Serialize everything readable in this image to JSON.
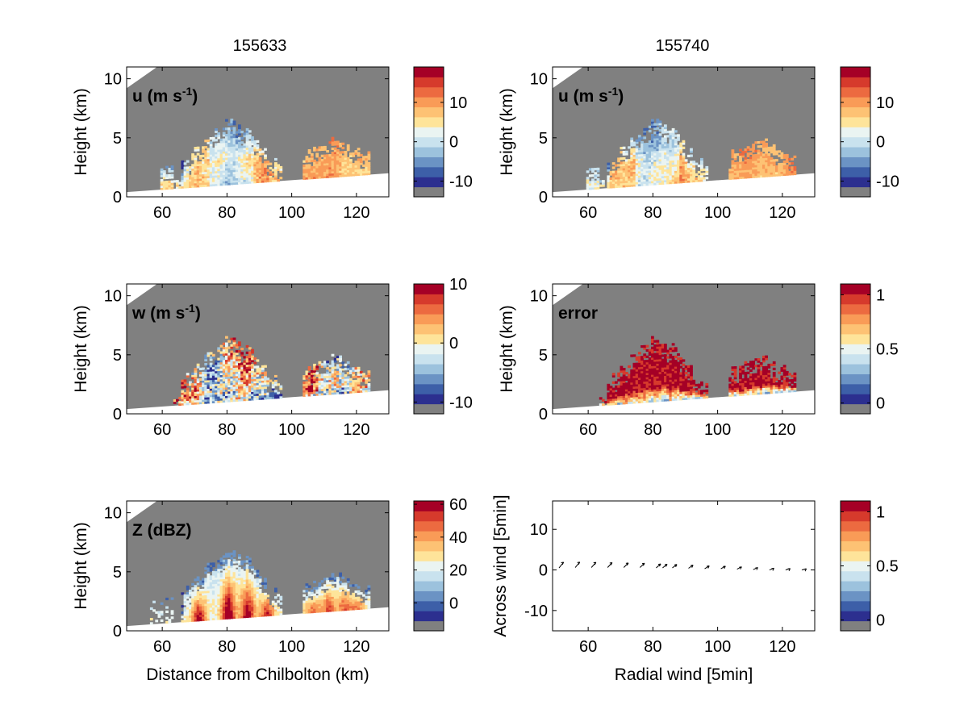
{
  "columns": [
    "155633",
    "155740"
  ],
  "colors": {
    "ground": "#808080",
    "scale": [
      "#808080",
      "#2c2f8f",
      "#3d5fa8",
      "#6b93c4",
      "#9cc2dd",
      "#c9e2ee",
      "#eaf4f2",
      "#fee49a",
      "#fdc274",
      "#f99b57",
      "#ec6a40",
      "#d63a2c",
      "#a50026"
    ]
  },
  "panels": [
    {
      "id": "u-left",
      "col": 0,
      "row": 0,
      "label": "u (m s",
      "label_sup": "-1",
      "label_close": ")",
      "ylabel": "Height (km)",
      "xlabel": "",
      "xlim": [
        49,
        130
      ],
      "ylim": [
        0,
        11
      ],
      "xticks": [
        "60",
        "80",
        "100",
        "120"
      ],
      "yticks": [
        "0",
        "5",
        "10"
      ],
      "colorbar": {
        "ticks": [
          "10",
          "0",
          "-10"
        ],
        "min": -14,
        "max": 19
      },
      "field": "u"
    },
    {
      "id": "u-right",
      "col": 1,
      "row": 0,
      "label": "u (m s",
      "label_sup": "-1",
      "label_close": ")",
      "ylabel": "Height (km)",
      "xlabel": "",
      "xlim": [
        49,
        130
      ],
      "ylim": [
        0,
        11
      ],
      "xticks": [
        "60",
        "80",
        "100",
        "120"
      ],
      "yticks": [
        "0",
        "5",
        "10"
      ],
      "colorbar": {
        "ticks": [
          "10",
          "0",
          "-10"
        ],
        "min": -14,
        "max": 19
      },
      "field": "u2"
    },
    {
      "id": "w-left",
      "col": 0,
      "row": 1,
      "label": "w (m s",
      "label_sup": "-1",
      "label_close": ")",
      "ylabel": "Height (km)",
      "xlabel": "",
      "xlim": [
        49,
        130
      ],
      "ylim": [
        0,
        11
      ],
      "xticks": [
        "60",
        "80",
        "100",
        "120"
      ],
      "yticks": [
        "0",
        "5",
        "10"
      ],
      "colorbar": {
        "ticks": [
          "10",
          "0",
          "-10"
        ],
        "min": -12,
        "max": 10
      },
      "field": "w"
    },
    {
      "id": "error-right",
      "col": 1,
      "row": 1,
      "label": "error",
      "label_sup": "",
      "label_close": "",
      "ylabel": "Height (km)",
      "xlabel": "",
      "xlim": [
        49,
        130
      ],
      "ylim": [
        0,
        11
      ],
      "xticks": [
        "60",
        "80",
        "100",
        "120"
      ],
      "yticks": [
        "0",
        "5",
        "10"
      ],
      "colorbar": {
        "ticks": [
          "1",
          "0.5",
          "0"
        ],
        "min": -0.1,
        "max": 1.1
      },
      "field": "error"
    },
    {
      "id": "z-left",
      "col": 0,
      "row": 2,
      "label": "Z (dBZ)",
      "label_sup": "",
      "label_close": "",
      "ylabel": "Height (km)",
      "xlabel": "Distance from Chilbolton (km)",
      "xlim": [
        49,
        130
      ],
      "ylim": [
        0,
        11
      ],
      "xticks": [
        "60",
        "80",
        "100",
        "120"
      ],
      "yticks": [
        "0",
        "5",
        "10"
      ],
      "colorbar": {
        "ticks": [
          "60",
          "40",
          "20",
          "0"
        ],
        "min": -17,
        "max": 62
      },
      "field": "z"
    },
    {
      "id": "wind-right",
      "col": 1,
      "row": 2,
      "label": "",
      "label_sup": "",
      "label_close": "",
      "ylabel": "Across wind [5min]",
      "xlabel": "Radial wind [5min]",
      "xlim": [
        49,
        130
      ],
      "ylim": [
        -15,
        17
      ],
      "xticks": [
        "60",
        "80",
        "100",
        "120"
      ],
      "yticks": [
        "-10",
        "0",
        "10"
      ],
      "colorbar": {
        "ticks": [
          "1",
          "0.5",
          "0"
        ],
        "min": -0.1,
        "max": 1.1
      },
      "field": "quiver"
    }
  ],
  "chart_data": {
    "type": "heatmap",
    "title": "",
    "time_labels": [
      "155633",
      "155740"
    ],
    "xlabel": "Distance from Chilbolton (km)",
    "ylabel": "Height (km)",
    "xlim": [
      49,
      130
    ],
    "ylim": [
      0,
      11
    ],
    "ground_height_km": {
      "x": [
        49,
        130
      ],
      "y": [
        0.4,
        2.0
      ]
    },
    "u_panels_ms": {
      "colorbar_range": [
        -14,
        19
      ],
      "colorbar_ticks": [
        10,
        0,
        -10
      ],
      "cell_1_km": [
        62,
        98
      ],
      "cell_2_km": [
        103,
        124
      ],
      "max_height_km": 7.5
    },
    "w_panel_ms": {
      "colorbar_range": [
        -12,
        10
      ],
      "colorbar_ticks": [
        10,
        0,
        -10
      ]
    },
    "error_panel": {
      "colorbar_range": [
        -0.1,
        1.1
      ],
      "colorbar_ticks": [
        1,
        0.5,
        0
      ]
    },
    "z_panel_dbz": {
      "colorbar_range": [
        -17,
        62
      ],
      "colorbar_ticks": [
        60,
        40,
        20,
        0
      ]
    },
    "quiver_panel": {
      "xlabel": "Radial wind [5min]",
      "ylabel": "Across wind [5min]",
      "ylim": [
        -15,
        17
      ],
      "colorbar_ticks": [
        1,
        0.5,
        0
      ],
      "arrow_x_km": [
        51,
        56,
        61,
        66,
        71,
        76,
        81,
        83,
        86,
        91,
        96,
        101,
        106,
        111,
        116,
        121,
        126
      ],
      "arrow_y": [
        0.5,
        0.6,
        0.6,
        0.6,
        0.6,
        0.6,
        0.5,
        0.5,
        0.5,
        0.4,
        0.3,
        0.3,
        0.2,
        0.1,
        0.0,
        0.0,
        0.0
      ]
    }
  }
}
